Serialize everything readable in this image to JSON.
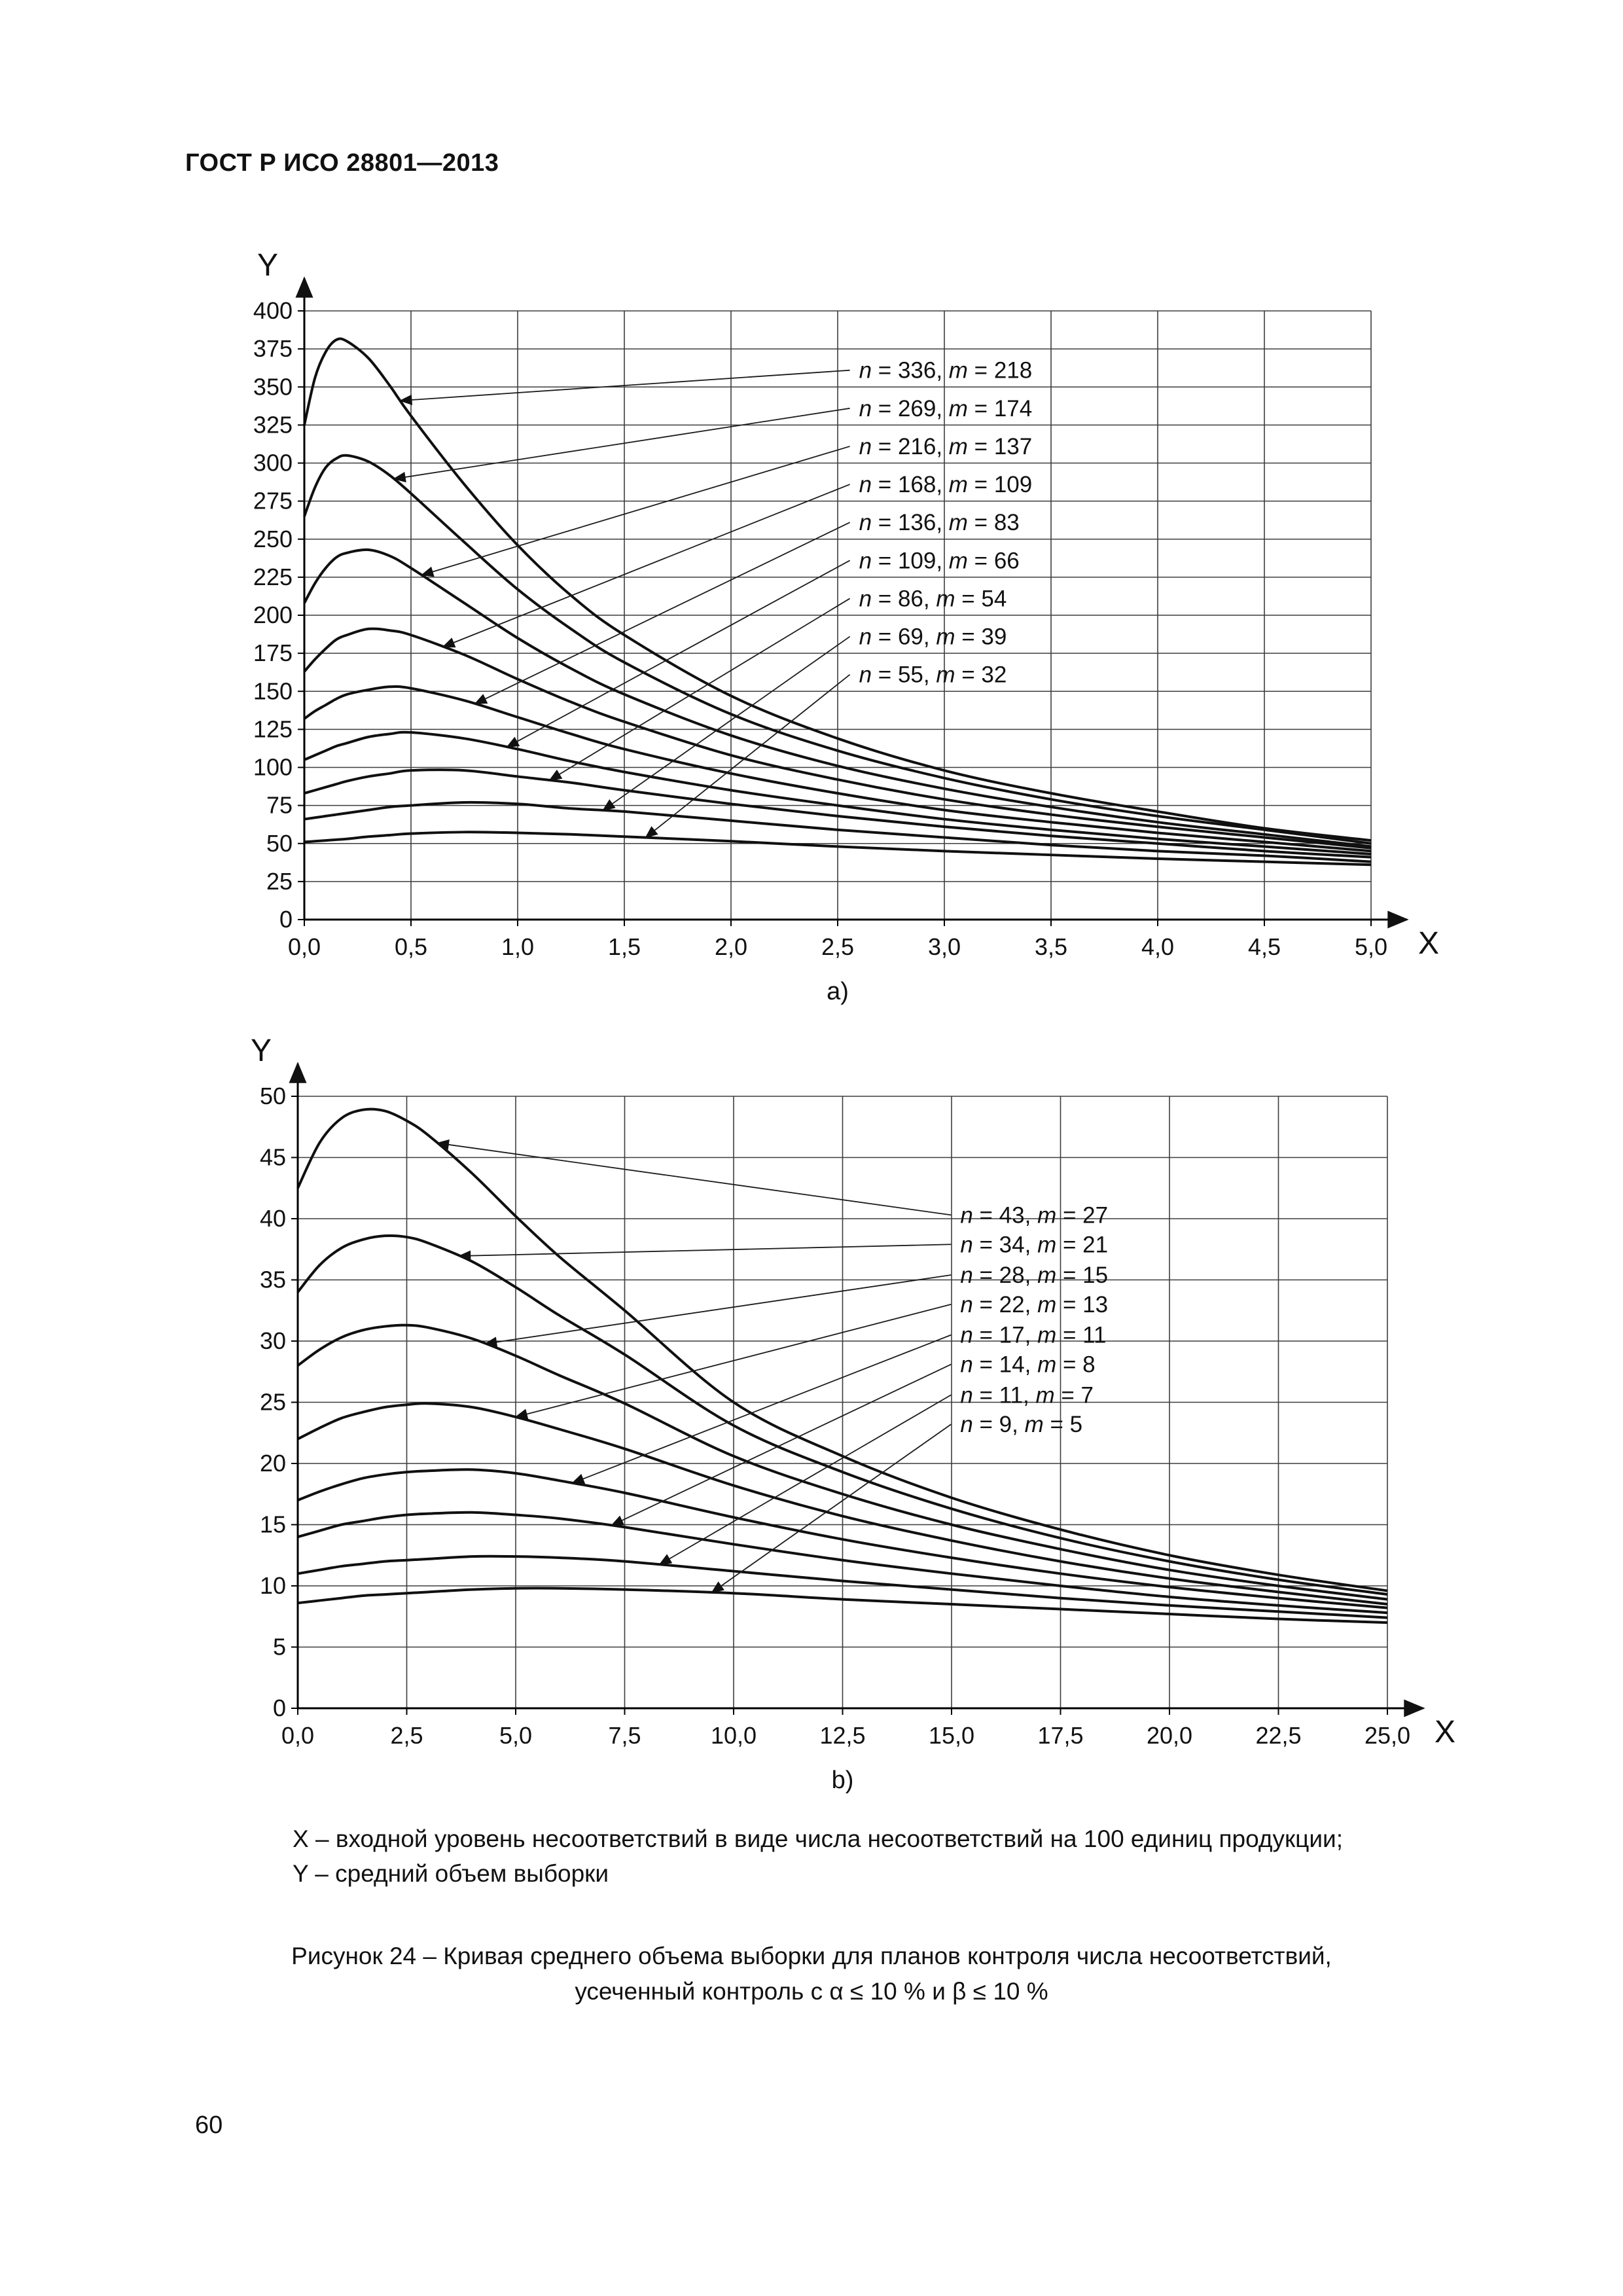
{
  "page": {
    "header": "ГОСТ Р ИСО 28801—2013",
    "page_number": "60",
    "note_x": "X – входной уровень несоответствий в виде числа несоответствий на 100 единиц продукции;",
    "note_y": "Y – средний объем выборки",
    "caption_line1": "Рисунок 24 – Кривая среднего объема выборки для планов контроля числа несоответствий,",
    "caption_line2": "усеченный контроль с α ≤ 10 % и β ≤ 10 %"
  },
  "chart_data": [
    {
      "id": "a",
      "type": "line",
      "sublabel": "a)",
      "xlabel": "X",
      "ylabel": "Y",
      "xlim": [
        0,
        5
      ],
      "ylim": [
        0,
        400
      ],
      "grid": true,
      "legend_position": "inside-upper-right",
      "x_ticks": {
        "values": [
          0,
          0.5,
          1,
          1.5,
          2,
          2.5,
          3,
          3.5,
          4,
          4.5,
          5
        ],
        "labels": [
          "0,0",
          "0,5",
          "1,0",
          "1,5",
          "2,0",
          "2,5",
          "3,0",
          "3,5",
          "4,0",
          "4,5",
          "5,0"
        ]
      },
      "y_ticks": {
        "values": [
          0,
          25,
          50,
          75,
          100,
          125,
          150,
          175,
          200,
          225,
          250,
          275,
          300,
          325,
          350,
          375,
          400
        ],
        "labels": [
          "0",
          "25",
          "50",
          "75",
          "100",
          "125",
          "150",
          "175",
          "200",
          "225",
          "250",
          "275",
          "300",
          "325",
          "350",
          "375",
          "400"
        ]
      },
      "x": [
        0,
        0.05,
        0.1,
        0.15,
        0.2,
        0.3,
        0.4,
        0.5,
        0.75,
        1,
        1.25,
        1.5,
        2,
        2.5,
        3,
        3.5,
        4,
        4.5,
        5
      ],
      "series": [
        {
          "n": 336,
          "m": 218,
          "label_parts": [
            "n",
            " = 336, ",
            "m",
            " = 218"
          ],
          "legend_at": [
            2.6,
            361
          ],
          "arrow_x": 0.45,
          "y": [
            325,
            356,
            373,
            381,
            380,
            369,
            351,
            331,
            286,
            246,
            213,
            187,
            147,
            119,
            98,
            83,
            71,
            60,
            52
          ]
        },
        {
          "n": 269,
          "m": 174,
          "label_parts": [
            "n",
            " = 269, ",
            "m",
            " = 174"
          ],
          "legend_at": [
            2.6,
            336
          ],
          "arrow_x": 0.42,
          "y": [
            265,
            284,
            297,
            303,
            305,
            301,
            292,
            280,
            248,
            217,
            191,
            169,
            135,
            111,
            93,
            79,
            68,
            59,
            50
          ]
        },
        {
          "n": 216,
          "m": 137,
          "label_parts": [
            "n",
            " = 216, ",
            "m",
            " = 137"
          ],
          "legend_at": [
            2.6,
            311
          ],
          "arrow_x": 0.55,
          "y": [
            208,
            221,
            231,
            238,
            241,
            243,
            239,
            231,
            208,
            185,
            165,
            148,
            121,
            101,
            86,
            74,
            64,
            56,
            48
          ]
        },
        {
          "n": 168,
          "m": 109,
          "label_parts": [
            "n",
            " = 168, ",
            "m",
            " = 109"
          ],
          "legend_at": [
            2.6,
            286
          ],
          "arrow_x": 0.65,
          "y": [
            163,
            171,
            178,
            184,
            187,
            191,
            190,
            187,
            174,
            158,
            143,
            130,
            108,
            92,
            79,
            69,
            61,
            54,
            47
          ]
        },
        {
          "n": 136,
          "m": 83,
          "label_parts": [
            "n",
            " = 136, ",
            "m",
            " = 83"
          ],
          "legend_at": [
            2.6,
            261
          ],
          "arrow_x": 0.8,
          "y": [
            132,
            137,
            141,
            145,
            148,
            151,
            153,
            152,
            144,
            133,
            122,
            112,
            96,
            83,
            72,
            64,
            57,
            51,
            45
          ]
        },
        {
          "n": 109,
          "m": 66,
          "label_parts": [
            "n",
            " = 109, ",
            "m",
            " = 66"
          ],
          "legend_at": [
            2.6,
            236
          ],
          "arrow_x": 0.95,
          "y": [
            105,
            108,
            111,
            114,
            116,
            120,
            122,
            123,
            119,
            112,
            104,
            97,
            85,
            75,
            66,
            59,
            53,
            48,
            43
          ]
        },
        {
          "n": 86,
          "m": 54,
          "label_parts": [
            "n",
            " = 86, ",
            "m",
            " = 54"
          ],
          "legend_at": [
            2.6,
            211
          ],
          "arrow_x": 1.15,
          "y": [
            83,
            85,
            87,
            89,
            91,
            94,
            96,
            98,
            98,
            94,
            90,
            85,
            76,
            68,
            61,
            55,
            50,
            45,
            41
          ]
        },
        {
          "n": 69,
          "m": 39,
          "label_parts": [
            "n",
            " = 69, ",
            "m",
            " = 39"
          ],
          "legend_at": [
            2.6,
            186
          ],
          "arrow_x": 1.4,
          "y": [
            66,
            67,
            68,
            69,
            70,
            72,
            74,
            75,
            77,
            76,
            73,
            71,
            65,
            59,
            54,
            49,
            45,
            42,
            38
          ]
        },
        {
          "n": 55,
          "m": 32,
          "label_parts": [
            "n",
            " = 55, ",
            "m",
            " = 32"
          ],
          "legend_at": [
            2.6,
            161
          ],
          "arrow_x": 1.6,
          "y": [
            51,
            51.5,
            52,
            52.5,
            53,
            54.5,
            55.5,
            56.5,
            57.5,
            57,
            56,
            54.5,
            51.5,
            48,
            45,
            42.5,
            40,
            38,
            36
          ]
        }
      ]
    },
    {
      "id": "b",
      "type": "line",
      "sublabel": "b)",
      "xlabel": "X",
      "ylabel": "Y",
      "xlim": [
        0,
        25
      ],
      "ylim": [
        0,
        50
      ],
      "grid": true,
      "legend_position": "inside-upper-right",
      "x_ticks": {
        "values": [
          0,
          2.5,
          5,
          7.5,
          10,
          12.5,
          15,
          17.5,
          20,
          22.5,
          25
        ],
        "labels": [
          "0,0",
          "2,5",
          "5,0",
          "7,5",
          "10,0",
          "12,5",
          "15,0",
          "17,5",
          "20,0",
          "22,5",
          "25,0"
        ]
      },
      "y_ticks": {
        "values": [
          0,
          5,
          10,
          15,
          20,
          25,
          30,
          35,
          40,
          45,
          50
        ],
        "labels": [
          "0",
          "5",
          "10",
          "15",
          "20",
          "25",
          "30",
          "35",
          "40",
          "45",
          "50"
        ]
      },
      "x": [
        0,
        0.5,
        1,
        1.5,
        2,
        2.5,
        3,
        4,
        5,
        6,
        7.5,
        10,
        12.5,
        15,
        17.5,
        20,
        22.5,
        25
      ],
      "series": [
        {
          "n": 43,
          "m": 27,
          "label_parts": [
            "n",
            " = 43, ",
            "m",
            " = 27"
          ],
          "legend_at": [
            15.2,
            40.3
          ],
          "arrow_x": 3.2,
          "y": [
            42.5,
            46.2,
            48.2,
            48.9,
            48.8,
            48.0,
            46.8,
            43.7,
            40.2,
            36.9,
            32.5,
            25.0,
            20.6,
            17.2,
            14.6,
            12.5,
            10.9,
            9.6
          ]
        },
        {
          "n": 34,
          "m": 21,
          "label_parts": [
            "n",
            " = 34, ",
            "m",
            " = 21"
          ],
          "legend_at": [
            15.2,
            37.9
          ],
          "arrow_x": 3.7,
          "y": [
            34,
            36.2,
            37.6,
            38.3,
            38.6,
            38.5,
            38.0,
            36.5,
            34.4,
            32.1,
            28.9,
            23.1,
            19.3,
            16.3,
            13.9,
            12.0,
            10.5,
            9.3
          ]
        },
        {
          "n": 28,
          "m": 15,
          "label_parts": [
            "n",
            " = 28, ",
            "m",
            " = 15"
          ],
          "legend_at": [
            15.2,
            35.4
          ],
          "arrow_x": 4.3,
          "y": [
            28,
            29.3,
            30.3,
            30.9,
            31.2,
            31.3,
            31.1,
            30.2,
            28.8,
            27.2,
            24.9,
            20.6,
            17.5,
            15.0,
            13.0,
            11.3,
            10.0,
            8.9
          ]
        },
        {
          "n": 22,
          "m": 13,
          "label_parts": [
            "n",
            " = 22, ",
            "m",
            " = 13"
          ],
          "legend_at": [
            15.2,
            33.0
          ],
          "arrow_x": 5.0,
          "y": [
            22,
            22.9,
            23.7,
            24.2,
            24.6,
            24.8,
            24.9,
            24.6,
            23.8,
            22.8,
            21.2,
            18.2,
            15.7,
            13.7,
            12.0,
            10.6,
            9.5,
            8.5
          ]
        },
        {
          "n": 17,
          "m": 11,
          "label_parts": [
            "n",
            " = 17, ",
            "m",
            " = 11"
          ],
          "legend_at": [
            15.2,
            30.5
          ],
          "arrow_x": 6.3,
          "y": [
            17,
            17.7,
            18.3,
            18.8,
            19.1,
            19.3,
            19.4,
            19.5,
            19.2,
            18.6,
            17.6,
            15.6,
            13.8,
            12.3,
            11.0,
            9.9,
            9.0,
            8.2
          ]
        },
        {
          "n": 14,
          "m": 8,
          "label_parts": [
            "n",
            " = 14, ",
            "m",
            " = 8"
          ],
          "legend_at": [
            15.2,
            28.1
          ],
          "arrow_x": 7.2,
          "y": [
            14,
            14.5,
            15.0,
            15.3,
            15.6,
            15.8,
            15.9,
            16.0,
            15.8,
            15.5,
            14.8,
            13.4,
            12.1,
            11.0,
            10.0,
            9.1,
            8.4,
            7.8
          ]
        },
        {
          "n": 11,
          "m": 7,
          "label_parts": [
            "n",
            " = 11, ",
            "m",
            " = 7"
          ],
          "legend_at": [
            15.2,
            25.6
          ],
          "arrow_x": 8.3,
          "y": [
            11,
            11.3,
            11.6,
            11.8,
            12.0,
            12.1,
            12.2,
            12.4,
            12.4,
            12.3,
            12.0,
            11.2,
            10.4,
            9.7,
            9.0,
            8.4,
            7.9,
            7.4
          ]
        },
        {
          "n": 9,
          "m": 5,
          "label_parts": [
            "n",
            " = 9, ",
            "m",
            " = 5"
          ],
          "legend_at": [
            15.2,
            23.2
          ],
          "arrow_x": 9.5,
          "y": [
            8.6,
            8.8,
            9.0,
            9.2,
            9.3,
            9.4,
            9.5,
            9.7,
            9.8,
            9.8,
            9.7,
            9.4,
            8.9,
            8.5,
            8.1,
            7.7,
            7.3,
            7.0
          ]
        }
      ]
    }
  ]
}
